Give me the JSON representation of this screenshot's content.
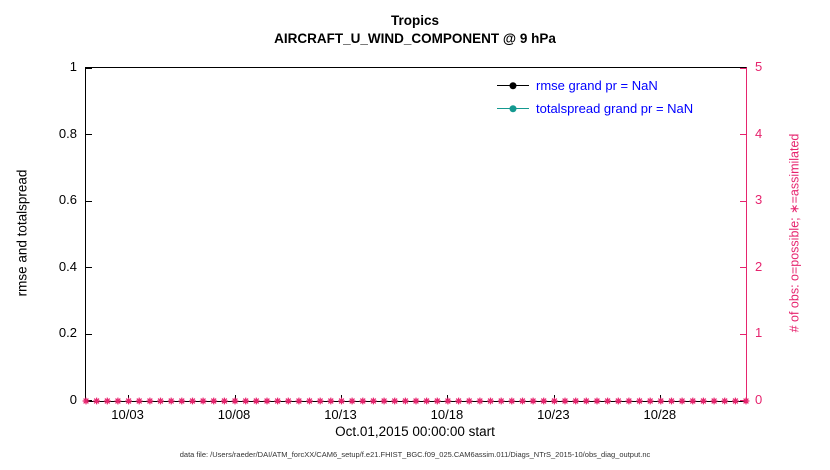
{
  "figure": {
    "title1": "Tropics",
    "title2": "AIRCRAFT_U_WIND_COMPONENT @ 9 hPa",
    "xlabel": "Oct.01,2015 00:00:00 start",
    "ylabel_left": "rmse and totalspread",
    "ylabel_right": "# of obs: o=possible; ∗=assimilated",
    "caption": "data file: /Users/raeder/DAI/ATM_forcXX/CAM6_setup/f.e21.FHIST_BGC.f09_025.CAM6assim.011/Diags_NTrS_2015-10/obs_diag_output.nc"
  },
  "legend": {
    "items": [
      {
        "label": "rmse grand pr = NaN",
        "color": "#000000"
      },
      {
        "label": "totalspread grand pr = NaN",
        "color": "#149990"
      }
    ],
    "text_color": "#0000ff"
  },
  "colors": {
    "left_axis": "#000000",
    "right_axis": "#e6246e",
    "obs_marker": "#e6246e"
  },
  "chart_data": {
    "type": "line",
    "title": "Tropics",
    "subtitle": "AIRCRAFT_U_WIND_COMPONENT @ 9 hPa",
    "xlabel": "Oct.01,2015 00:00:00 start",
    "x_axis": {
      "range_days": [
        0,
        31
      ],
      "tick_days": [
        2,
        7,
        12,
        17,
        22,
        27
      ],
      "tick_labels": [
        "10/03",
        "10/08",
        "10/13",
        "10/18",
        "10/23",
        "10/28"
      ]
    },
    "y_left": {
      "label": "rmse and totalspread",
      "min": 0,
      "max": 1,
      "ticks": [
        0,
        0.2,
        0.4,
        0.6,
        0.8,
        1
      ],
      "tick_labels": [
        "0",
        "0.2",
        "0.4",
        "0.6",
        "0.8",
        "1"
      ]
    },
    "y_right": {
      "label": "# of obs: o=possible; ∗=assimilated",
      "min": 0,
      "max": 5,
      "ticks": [
        0,
        1,
        2,
        3,
        4,
        5
      ],
      "tick_labels": [
        "0",
        "1",
        "2",
        "3",
        "4",
        "5"
      ]
    },
    "grid": false,
    "legend_position": "top-right-inside",
    "series": [
      {
        "name": "rmse",
        "grand_pr": "NaN",
        "values": []
      },
      {
        "name": "totalspread",
        "grand_pr": "NaN",
        "values": []
      }
    ],
    "obs_markers": {
      "name": "assimilated",
      "marker": "asterisk",
      "value": 0,
      "start_day": 0,
      "end_day": 31,
      "step_days": 0.5
    }
  }
}
